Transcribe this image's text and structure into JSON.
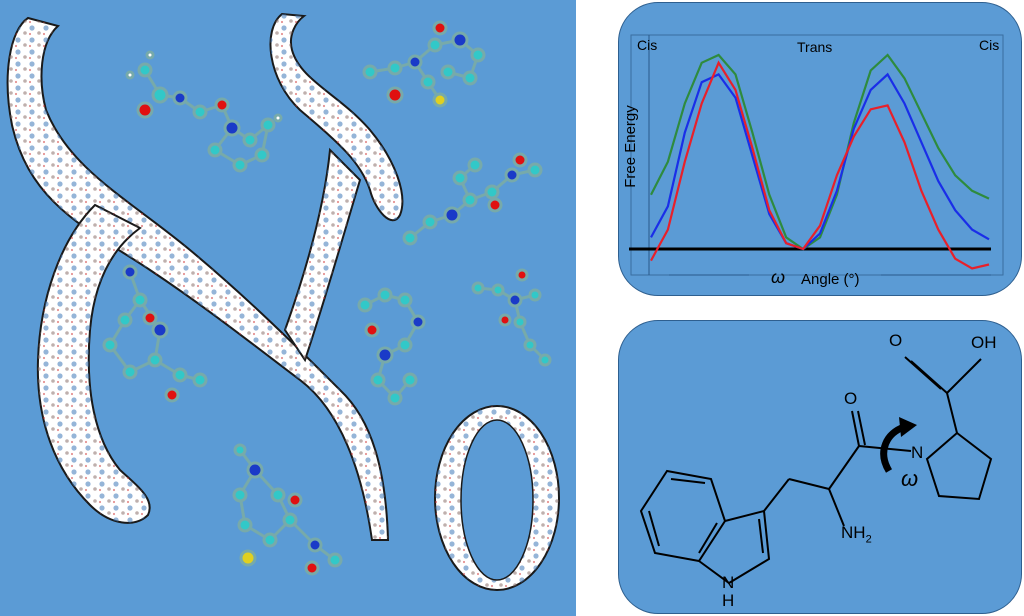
{
  "chart": {
    "ylabel": "Free Energy",
    "xlabel_symbol": "ω",
    "xlabel_text": "Angle (°)",
    "annotations": {
      "left": "Cis",
      "middle": "Trans",
      "right": "Cis"
    },
    "colors": {
      "green": "#2e8b3e",
      "blue": "#1a2ee8",
      "red": "#e8202a",
      "baseline": "#000000"
    }
  },
  "chart_data": {
    "type": "line",
    "x": [
      0,
      5,
      10,
      15,
      20,
      25,
      30,
      35,
      40,
      45,
      50,
      55,
      60,
      65,
      70,
      75,
      80,
      85,
      90,
      95,
      100
    ],
    "series": [
      {
        "color": "green",
        "values": [
          0.28,
          0.45,
          0.75,
          0.96,
          1.0,
          0.9,
          0.6,
          0.28,
          0.06,
          0.0,
          0.06,
          0.28,
          0.65,
          0.92,
          1.0,
          0.88,
          0.7,
          0.52,
          0.38,
          0.3,
          0.26
        ]
      },
      {
        "color": "blue",
        "values": [
          0.06,
          0.22,
          0.6,
          0.86,
          0.9,
          0.78,
          0.48,
          0.18,
          0.03,
          0.0,
          0.08,
          0.3,
          0.62,
          0.82,
          0.9,
          0.75,
          0.55,
          0.35,
          0.2,
          0.1,
          0.05
        ]
      },
      {
        "color": "red",
        "values": [
          -0.06,
          0.1,
          0.45,
          0.75,
          0.96,
          0.82,
          0.52,
          0.2,
          0.03,
          0.0,
          0.12,
          0.38,
          0.58,
          0.72,
          0.74,
          0.55,
          0.3,
          0.1,
          -0.05,
          -0.1,
          -0.08
        ]
      }
    ]
  },
  "molecule": {
    "atom_labels": {
      "oh": "OH",
      "o_carboxyl": "O",
      "o_amide": "O",
      "n_ring": "N",
      "nh2": "NH",
      "nh2_sub": "2",
      "n_indole": "N",
      "h_indole": "H",
      "omega": "ω"
    }
  }
}
